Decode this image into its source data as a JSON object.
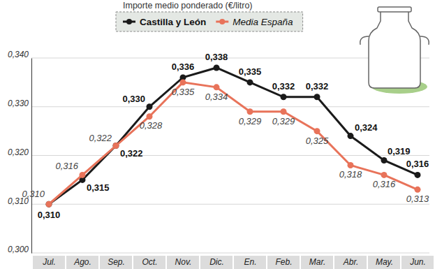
{
  "chart_data": {
    "type": "line",
    "title": "Importe medio ponderado (€/litro)",
    "categories": [
      "Jul.",
      "Ago.",
      "Sep.",
      "Oct.",
      "Nov.",
      "Dic.",
      "En.",
      "Feb.",
      "Mar.",
      "Abr.",
      "May.",
      "Jun."
    ],
    "series": [
      {
        "name": "Castilla y León",
        "color": "#1a1a1a",
        "marker": "circle",
        "line_style": "solid",
        "values": [
          0.31,
          0.315,
          0.322,
          0.33,
          0.336,
          0.338,
          0.335,
          0.332,
          0.332,
          0.324,
          0.319,
          0.316
        ],
        "value_labels": [
          "0,310",
          "0,315",
          "0,322",
          "0,330",
          "0,336",
          "0,338",
          "0,335",
          "0,332",
          "0,332",
          "0,324",
          "0,319",
          "0,316"
        ]
      },
      {
        "name": "Media España",
        "color": "#e8735a",
        "marker": "circle",
        "line_style": "solid",
        "values": [
          0.31,
          0.316,
          0.322,
          0.328,
          0.335,
          0.334,
          0.329,
          0.329,
          0.325,
          0.318,
          0.316,
          0.313
        ],
        "value_labels": [
          "0,310",
          "0,316",
          "0,322",
          "0,328",
          "0,335",
          "0,334",
          "0,329",
          "0,329",
          "0,325",
          "0,318",
          "0,316",
          "0,313"
        ]
      }
    ],
    "ylim": [
      0.3,
      0.34
    ],
    "yticks": [
      {
        "value": 0.3,
        "label": "0,300"
      },
      {
        "value": 0.31,
        "label": "0,310"
      },
      {
        "value": 0.32,
        "label": "0,320"
      },
      {
        "value": 0.33,
        "label": "0,330"
      },
      {
        "value": 0.34,
        "label": "0,340"
      }
    ],
    "grid": true,
    "legend": "top",
    "data_labels": true
  }
}
